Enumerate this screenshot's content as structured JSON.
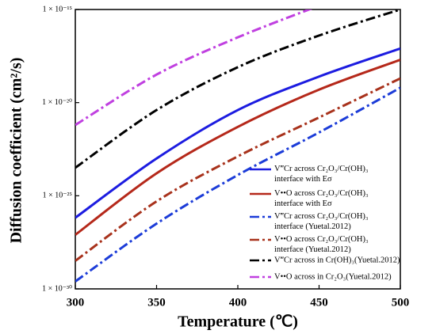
{
  "chart_data": {
    "type": "line",
    "yscale": "log",
    "x_label": "Temperature (℃)",
    "y_label": "Diffusion coefficient (cm²/s)",
    "x": [
      300,
      350,
      400,
      450,
      500
    ],
    "xlim": [
      300,
      500
    ],
    "xticks": [
      300,
      350,
      400,
      450,
      500
    ],
    "ylim": [
      1e-30,
      1e-15
    ],
    "yticks": [
      {
        "value": 1e-30,
        "label": "1 × 10⁻³⁰"
      },
      {
        "value": 1e-25,
        "label": "1 × 10⁻²⁵"
      },
      {
        "value": 1e-20,
        "label": "1 × 10⁻²⁰"
      },
      {
        "value": 1e-15,
        "label": "1 × 10⁻¹⁵"
      }
    ],
    "series": [
      {
        "name": "V‴Cr across Cr₂O₃/Cr(OH)₃\ninterface with Eσ",
        "color": "#1c1ce0",
        "dash": "solid",
        "values": [
          6.6e-27,
          1e-23,
          4e-21,
          2.5e-19,
          8e-18
        ]
      },
      {
        "name": "V••O across Cr₂O₃/Cr(OH)₃\ninterface with Eσ",
        "color": "#b5281a",
        "dash": "solid",
        "values": [
          8e-28,
          1.6e-24,
          5e-22,
          5e-20,
          2e-18
        ]
      },
      {
        "name": "V‴Cr across Cr₂O₃/Cr(OH)₃\ninterface (Yuetal.2012)",
        "color": "#1c3cd8",
        "dash": "dashdot",
        "values": [
          2.5e-30,
          3.2e-27,
          1.3e-24,
          2.5e-22,
          6.3e-20
        ]
      },
      {
        "name": "V••O across Cr₂O₃/Cr(OH)₃\ninterface (Yuetal.2012)",
        "color": "#a8321c",
        "dash": "dashdot",
        "values": [
          3.2e-29,
          5e-26,
          1.3e-23,
          1.6e-21,
          2e-19
        ]
      },
      {
        "name": "V‴Cr across in Cr(OH)₃(Yuetal.2012)",
        "color": "#000000",
        "dash": "dashdot",
        "values": [
          3.2e-24,
          4e-21,
          8e-19,
          4e-17,
          1e-15
        ]
      },
      {
        "name": "V••O across in Cr₂O₃(Yuetal.2012)",
        "color": "#c040e0",
        "dash": "dashdot",
        "values": [
          6.3e-22,
          3.2e-19,
          3.2e-17,
          1.6e-15,
          null
        ]
      }
    ]
  }
}
